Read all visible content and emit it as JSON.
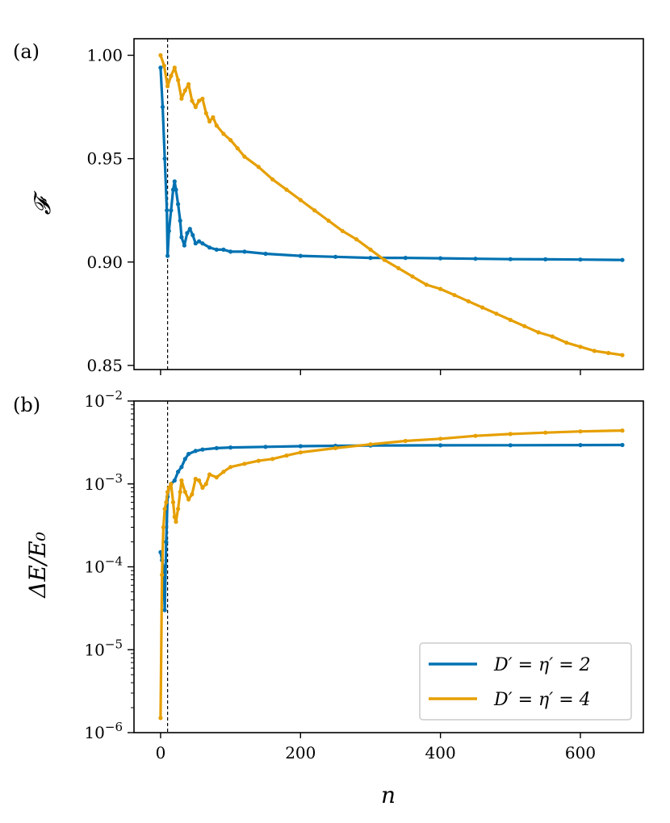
{
  "chart_data": [
    {
      "panel": "(a)",
      "type": "line",
      "xlabel": "",
      "ylabel": "𝓕",
      "xlim": [
        -38,
        690
      ],
      "ylim": [
        0.848,
        1.008
      ],
      "yticks": [
        0.85,
        0.9,
        0.95,
        1.0
      ],
      "ytick_labels": [
        "0.85",
        "0.90",
        "0.95",
        "1.00"
      ],
      "xticks": [
        0,
        200,
        400,
        600
      ],
      "vline_x": 10,
      "series": [
        {
          "name": "D′ = η′ = 2",
          "color": "#0072B2",
          "x": [
            0,
            3,
            6,
            9,
            10,
            12,
            15,
            18,
            20,
            22,
            25,
            28,
            30,
            34,
            38,
            42,
            46,
            50,
            55,
            60,
            70,
            80,
            90,
            100,
            120,
            150,
            200,
            250,
            300,
            350,
            400,
            450,
            500,
            550,
            600,
            660
          ],
          "y": [
            0.994,
            0.975,
            0.95,
            0.925,
            0.903,
            0.915,
            0.925,
            0.935,
            0.939,
            0.935,
            0.928,
            0.92,
            0.912,
            0.908,
            0.914,
            0.916,
            0.913,
            0.909,
            0.91,
            0.909,
            0.907,
            0.906,
            0.906,
            0.905,
            0.905,
            0.904,
            0.903,
            0.9025,
            0.902,
            0.902,
            0.9018,
            0.9016,
            0.9014,
            0.9013,
            0.9012,
            0.901
          ]
        },
        {
          "name": "D′ = η′ = 4",
          "color": "#E69F00",
          "x": [
            0,
            5,
            10,
            15,
            20,
            25,
            30,
            35,
            40,
            45,
            50,
            55,
            60,
            65,
            70,
            75,
            80,
            90,
            100,
            110,
            120,
            140,
            160,
            180,
            200,
            220,
            240,
            260,
            280,
            300,
            320,
            340,
            360,
            380,
            400,
            420,
            440,
            460,
            480,
            500,
            520,
            540,
            560,
            580,
            600,
            620,
            640,
            660
          ],
          "y": [
            1.0,
            0.995,
            0.985,
            0.99,
            0.994,
            0.988,
            0.979,
            0.983,
            0.986,
            0.978,
            0.975,
            0.978,
            0.979,
            0.972,
            0.968,
            0.97,
            0.966,
            0.962,
            0.959,
            0.955,
            0.951,
            0.946,
            0.94,
            0.935,
            0.93,
            0.925,
            0.92,
            0.915,
            0.911,
            0.906,
            0.901,
            0.897,
            0.893,
            0.889,
            0.887,
            0.884,
            0.881,
            0.878,
            0.875,
            0.872,
            0.869,
            0.866,
            0.864,
            0.861,
            0.859,
            0.857,
            0.856,
            0.855
          ]
        }
      ]
    },
    {
      "panel": "(b)",
      "type": "line",
      "yscale": "log",
      "xlabel": "n",
      "ylabel": "ΔE/E₀",
      "xlim": [
        -38,
        690
      ],
      "ylim": [
        1e-06,
        0.01
      ],
      "xticks": [
        0,
        200,
        400,
        600
      ],
      "xtick_labels": [
        "0",
        "200",
        "400",
        "600"
      ],
      "ytick_exponents": [
        -6,
        -5,
        -4,
        -3,
        -2
      ],
      "ytick_base": "10",
      "vline_x": 10,
      "legend_position": "lower-right",
      "series": [
        {
          "name": "D′ = η′ = 2",
          "color": "#0072B2",
          "x": [
            0,
            2,
            4,
            6,
            8,
            10,
            12,
            15,
            20,
            25,
            30,
            35,
            40,
            50,
            60,
            80,
            100,
            150,
            200,
            250,
            300,
            400,
            500,
            600,
            660
          ],
          "y": [
            0.00015,
            0.00012,
            0.0001,
            3e-05,
            0.0002,
            0.0007,
            0.0009,
            0.001,
            0.0011,
            0.0014,
            0.0016,
            0.002,
            0.0023,
            0.0025,
            0.0026,
            0.0027,
            0.00275,
            0.0028,
            0.00285,
            0.00288,
            0.0029,
            0.00292,
            0.00293,
            0.00294,
            0.00295
          ]
        },
        {
          "name": "D′ = η′ = 4",
          "color": "#E69F00",
          "x": [
            0,
            2,
            4,
            6,
            8,
            10,
            12,
            15,
            18,
            20,
            22,
            25,
            28,
            30,
            35,
            40,
            45,
            50,
            55,
            60,
            65,
            70,
            80,
            90,
            100,
            120,
            140,
            160,
            180,
            200,
            250,
            300,
            350,
            400,
            450,
            500,
            550,
            600,
            660
          ],
          "y": [
            1.5e-06,
            8e-05,
            0.0003,
            0.0005,
            0.0006,
            0.0008,
            0.0009,
            0.001,
            0.0006,
            0.0004,
            0.00035,
            0.0005,
            0.0008,
            0.0011,
            0.0008,
            0.00065,
            0.00075,
            0.00115,
            0.0011,
            0.0009,
            0.001,
            0.0013,
            0.0012,
            0.0014,
            0.0016,
            0.00175,
            0.0019,
            0.002,
            0.0022,
            0.0024,
            0.0027,
            0.003,
            0.0033,
            0.0035,
            0.0038,
            0.004,
            0.00415,
            0.0043,
            0.0044
          ]
        }
      ]
    }
  ]
}
